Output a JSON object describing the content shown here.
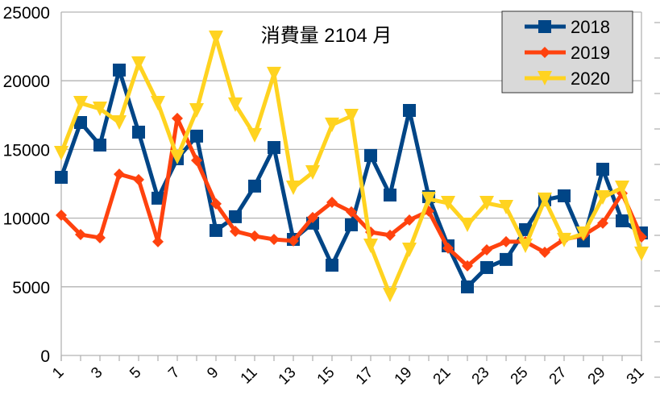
{
  "chart_data": {
    "type": "line",
    "title": "消費量 2104 月",
    "xlabel": "",
    "ylabel": "",
    "x": [
      1,
      2,
      3,
      4,
      5,
      6,
      7,
      8,
      9,
      10,
      11,
      12,
      13,
      14,
      15,
      16,
      17,
      18,
      19,
      20,
      21,
      22,
      23,
      24,
      25,
      26,
      27,
      28,
      29,
      30,
      31
    ],
    "x_tick_labels": [
      "1",
      "3",
      "5",
      "7",
      "9",
      "11",
      "13",
      "15",
      "17",
      "19",
      "21",
      "23",
      "25",
      "27",
      "29",
      "31"
    ],
    "ylim": [
      0,
      25000
    ],
    "y_ticks": [
      "0",
      "5000",
      "10000",
      "15000",
      "20000",
      "25000"
    ],
    "grid": true,
    "legend_position": "top-right",
    "series": [
      {
        "name": "2018",
        "color": "#004586",
        "marker": "square",
        "values": [
          12970,
          16960,
          15320,
          20780,
          16260,
          11450,
          14320,
          15970,
          9100,
          10100,
          12330,
          15140,
          8450,
          9630,
          6570,
          9510,
          14560,
          11680,
          17840,
          11560,
          7980,
          4990,
          6400,
          6990,
          9160,
          11330,
          11620,
          8340,
          13560,
          9800,
          8920
        ]
      },
      {
        "name": "2019",
        "color": "#ff420e",
        "marker": "diamond",
        "values": [
          10210,
          8800,
          8570,
          13200,
          12800,
          8280,
          17260,
          14200,
          11040,
          9040,
          8690,
          8450,
          8340,
          10040,
          11150,
          10450,
          8980,
          8750,
          9860,
          10510,
          7810,
          6520,
          7690,
          8280,
          8280,
          7510,
          8450,
          8750,
          9630,
          11800,
          8630
        ]
      },
      {
        "name": "2020",
        "color": "#ffd320",
        "marker": "triangle-down",
        "values": [
          14730,
          18370,
          17960,
          16960,
          21250,
          18370,
          14440,
          17840,
          23130,
          18260,
          16030,
          20490,
          12210,
          13320,
          16790,
          17430,
          7980,
          4400,
          7690,
          11390,
          11090,
          9510,
          11090,
          10800,
          7980,
          11330,
          8400,
          8860,
          11500,
          12210,
          7400
        ]
      }
    ]
  }
}
